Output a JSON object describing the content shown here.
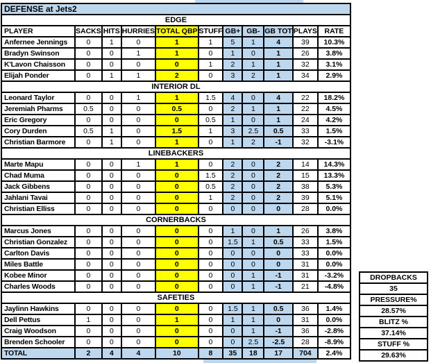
{
  "window": {
    "title": "DEFENSE at Jets2"
  },
  "colors": {
    "highlight_yellow": "#FFFF00",
    "highlight_blue": "#BDD7EE",
    "border": "#000000",
    "background": "#FFFFFF"
  },
  "table": {
    "columns": [
      "PLAYER",
      "SACKS",
      "HITS",
      "HURRIES",
      "TOTAL QBP",
      "STUFF",
      "GB+",
      "GB-",
      "GB TOT",
      "PLAYS",
      "RATE"
    ],
    "sections": [
      {
        "label": "EDGE",
        "players": [
          {
            "name": "Anfernee Jennings",
            "stats": [
              "0",
              "1",
              "0",
              "1",
              "1",
              "5",
              "1",
              "4",
              "39",
              "10.3%"
            ]
          },
          {
            "name": "Bradyn Swinson",
            "stats": [
              "0",
              "0",
              "1",
              "1",
              "0",
              "1",
              "0",
              "1",
              "26",
              "3.8%"
            ]
          },
          {
            "name": "K'Lavon Chaisson",
            "stats": [
              "0",
              "0",
              "0",
              "0",
              "1",
              "2",
              "1",
              "1",
              "32",
              "3.1%"
            ]
          },
          {
            "name": "Elijah Ponder",
            "stats": [
              "0",
              "1",
              "1",
              "2",
              "0",
              "3",
              "2",
              "1",
              "34",
              "2.9%"
            ]
          }
        ]
      },
      {
        "label": "INTERIOR DL",
        "players": [
          {
            "name": "Leonard Taylor",
            "stats": [
              "0",
              "0",
              "1",
              "1",
              "1.5",
              "4",
              "0",
              "4",
              "22",
              "18.2%"
            ]
          },
          {
            "name": "Jeremiah Pharms",
            "stats": [
              "0.5",
              "0",
              "0",
              "0.5",
              "0",
              "2",
              "1",
              "1",
              "22",
              "4.5%"
            ]
          },
          {
            "name": "Eric Gregory",
            "stats": [
              "0",
              "0",
              "0",
              "0",
              "0.5",
              "1",
              "0",
              "1",
              "24",
              "4.2%"
            ]
          },
          {
            "name": "Cory Durden",
            "stats": [
              "0.5",
              "1",
              "0",
              "1.5",
              "1",
              "3",
              "2.5",
              "0.5",
              "33",
              "1.5%"
            ]
          },
          {
            "name": "Christian Barmore",
            "stats": [
              "0",
              "1",
              "0",
              "1",
              "0",
              "1",
              "2",
              "-1",
              "32",
              "-3.1%"
            ]
          }
        ]
      },
      {
        "label": "LINEBACKERS",
        "players": [
          {
            "name": "Marte Mapu",
            "stats": [
              "0",
              "0",
              "1",
              "1",
              "0",
              "2",
              "0",
              "2",
              "14",
              "14.3%"
            ]
          },
          {
            "name": "Chad Muma",
            "stats": [
              "0",
              "0",
              "0",
              "0",
              "1.5",
              "2",
              "0",
              "2",
              "15",
              "13.3%"
            ]
          },
          {
            "name": "Jack Gibbens",
            "stats": [
              "0",
              "0",
              "0",
              "0",
              "0.5",
              "2",
              "0",
              "2",
              "38",
              "5.3%"
            ]
          },
          {
            "name": "Jahlani Tavai",
            "stats": [
              "0",
              "0",
              "0",
              "0",
              "1",
              "2",
              "0",
              "2",
              "39",
              "5.1%"
            ]
          },
          {
            "name": "Christian Elliss",
            "stats": [
              "0",
              "0",
              "0",
              "0",
              "0",
              "0",
              "0",
              "0",
              "28",
              "0.0%"
            ]
          }
        ]
      },
      {
        "label": "CORNERBACKS",
        "players": [
          {
            "name": "Marcus Jones",
            "stats": [
              "0",
              "0",
              "0",
              "0",
              "0",
              "1",
              "0",
              "1",
              "26",
              "3.8%"
            ]
          },
          {
            "name": "Christian Gonzalez",
            "stats": [
              "0",
              "0",
              "0",
              "0",
              "0",
              "1.5",
              "1",
              "0.5",
              "33",
              "1.5%"
            ]
          },
          {
            "name": "Carlton Davis",
            "stats": [
              "0",
              "0",
              "0",
              "0",
              "0",
              "0",
              "0",
              "0",
              "33",
              "0.0%"
            ]
          },
          {
            "name": "Miles Battle",
            "stats": [
              "0",
              "0",
              "0",
              "0",
              "0",
              "0",
              "0",
              "0",
              "31",
              "0.0%"
            ]
          },
          {
            "name": "Kobee Minor",
            "stats": [
              "0",
              "0",
              "0",
              "0",
              "0",
              "0",
              "1",
              "-1",
              "31",
              "-3.2%"
            ]
          },
          {
            "name": "Charles Woods",
            "stats": [
              "0",
              "0",
              "0",
              "0",
              "0",
              "0",
              "1",
              "-1",
              "21",
              "-4.8%"
            ]
          }
        ]
      },
      {
        "label": "SAFETIES",
        "players": [
          {
            "name": "Jaylinn Hawkins",
            "stats": [
              "0",
              "0",
              "0",
              "0",
              "0",
              "1.5",
              "1",
              "0.5",
              "36",
              "1.4%"
            ]
          },
          {
            "name": "Dell Pettus",
            "stats": [
              "1",
              "0",
              "0",
              "1",
              "0",
              "1",
              "1",
              "0",
              "31",
              "0.0%"
            ]
          },
          {
            "name": "Craig Woodson",
            "stats": [
              "0",
              "0",
              "0",
              "0",
              "0",
              "0",
              "1",
              "-1",
              "36",
              "-2.8%"
            ]
          },
          {
            "name": "Brenden Schooler",
            "stats": [
              "0",
              "0",
              "0",
              "0",
              "0",
              "0",
              "2.5",
              "-2.5",
              "28",
              "-8.9%"
            ]
          }
        ]
      }
    ],
    "total": {
      "name": "TOTAL",
      "stats": [
        "2",
        "4",
        "4",
        "10",
        "8",
        "35",
        "18",
        "17",
        "704",
        "2.4%"
      ]
    }
  },
  "side_panel": {
    "cells": [
      {
        "name": "dropbacks-label",
        "text": "DROPBACKS"
      },
      {
        "name": "dropbacks-value",
        "text": "35"
      },
      {
        "name": "pressure-label",
        "text": "PRESSURE%"
      },
      {
        "name": "pressure-value",
        "text": "28.57%"
      },
      {
        "name": "blitz-label",
        "text": "BLITZ %"
      },
      {
        "name": "blitz-value",
        "text": "37.14%"
      },
      {
        "name": "stuff-label",
        "text": "STUFF %"
      },
      {
        "name": "stuff-value",
        "text": "29.63%"
      }
    ]
  }
}
